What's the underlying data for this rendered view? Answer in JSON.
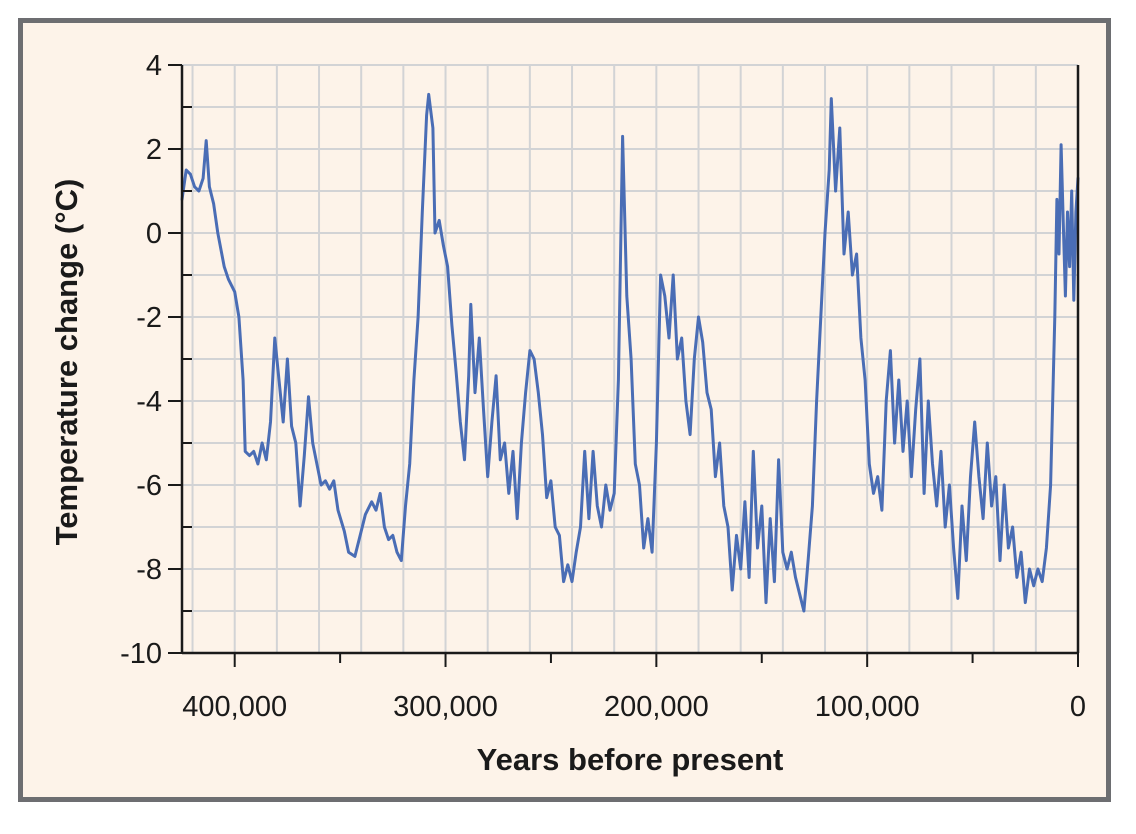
{
  "chart_data": {
    "type": "line",
    "title": "",
    "xlabel": "Years before present",
    "ylabel": "Temperature change (°C)",
    "xlim": [
      425000,
      0
    ],
    "ylim": [
      -10,
      4
    ],
    "x_axis_reversed": true,
    "grid": true,
    "legend": "none",
    "x_ticks": [
      400000,
      300000,
      200000,
      100000,
      0
    ],
    "x_tick_labels": [
      "400,000",
      "300,000",
      "200,000",
      "100,000",
      "0"
    ],
    "x_minor_ticks": [
      350000,
      250000,
      150000,
      50000
    ],
    "y_ticks": [
      4,
      2,
      0,
      -2,
      -4,
      -6,
      -8,
      -10
    ],
    "y_tick_labels": [
      "4",
      "2",
      "0",
      "-2",
      "-4",
      "-6",
      "-8",
      "-10"
    ],
    "series": [
      {
        "color": "#4a6db5",
        "points": [
          [
            425000,
            0.8
          ],
          [
            423000,
            1.5
          ],
          [
            421000,
            1.4
          ],
          [
            419000,
            1.1
          ],
          [
            417000,
            1.0
          ],
          [
            415000,
            1.3
          ],
          [
            413500,
            2.2
          ],
          [
            412000,
            1.1
          ],
          [
            410000,
            0.7
          ],
          [
            408000,
            0.0
          ],
          [
            405000,
            -0.8
          ],
          [
            403000,
            -1.1
          ],
          [
            400000,
            -1.4
          ],
          [
            398000,
            -2.0
          ],
          [
            396000,
            -3.5
          ],
          [
            395000,
            -5.2
          ],
          [
            393000,
            -5.3
          ],
          [
            391000,
            -5.2
          ],
          [
            389000,
            -5.5
          ],
          [
            387000,
            -5.0
          ],
          [
            385000,
            -5.4
          ],
          [
            383000,
            -4.5
          ],
          [
            381000,
            -2.5
          ],
          [
            379000,
            -3.5
          ],
          [
            377000,
            -4.5
          ],
          [
            375000,
            -3.0
          ],
          [
            373000,
            -4.6
          ],
          [
            371000,
            -5.0
          ],
          [
            369000,
            -6.5
          ],
          [
            367000,
            -5.3
          ],
          [
            365000,
            -3.9
          ],
          [
            363000,
            -5.0
          ],
          [
            361000,
            -5.5
          ],
          [
            359000,
            -6.0
          ],
          [
            357000,
            -5.9
          ],
          [
            355000,
            -6.1
          ],
          [
            353000,
            -5.9
          ],
          [
            351000,
            -6.6
          ],
          [
            348000,
            -7.1
          ],
          [
            346000,
            -7.6
          ],
          [
            343000,
            -7.7
          ],
          [
            340000,
            -7.1
          ],
          [
            338000,
            -6.7
          ],
          [
            335000,
            -6.4
          ],
          [
            333000,
            -6.6
          ],
          [
            331000,
            -6.2
          ],
          [
            329000,
            -7.0
          ],
          [
            327000,
            -7.3
          ],
          [
            325000,
            -7.2
          ],
          [
            323000,
            -7.6
          ],
          [
            321000,
            -7.8
          ],
          [
            319000,
            -6.5
          ],
          [
            317000,
            -5.5
          ],
          [
            315000,
            -3.5
          ],
          [
            313000,
            -2.0
          ],
          [
            311000,
            0.5
          ],
          [
            309000,
            2.8
          ],
          [
            308000,
            3.3
          ],
          [
            306000,
            2.5
          ],
          [
            305000,
            0.0
          ],
          [
            303000,
            0.3
          ],
          [
            301000,
            -0.3
          ],
          [
            299000,
            -0.8
          ],
          [
            297000,
            -2.2
          ],
          [
            295000,
            -3.3
          ],
          [
            293000,
            -4.5
          ],
          [
            291000,
            -5.4
          ],
          [
            289000,
            -3.4
          ],
          [
            288000,
            -1.7
          ],
          [
            286000,
            -3.8
          ],
          [
            284000,
            -2.5
          ],
          [
            282000,
            -4.2
          ],
          [
            280000,
            -5.8
          ],
          [
            278000,
            -4.5
          ],
          [
            276000,
            -3.4
          ],
          [
            274000,
            -5.4
          ],
          [
            272000,
            -5.0
          ],
          [
            270000,
            -6.2
          ],
          [
            268000,
            -5.2
          ],
          [
            266000,
            -6.8
          ],
          [
            264000,
            -5.0
          ],
          [
            262000,
            -3.8
          ],
          [
            260000,
            -2.8
          ],
          [
            258000,
            -3.0
          ],
          [
            256000,
            -3.8
          ],
          [
            254000,
            -4.8
          ],
          [
            252000,
            -6.3
          ],
          [
            250000,
            -5.9
          ],
          [
            248000,
            -7.0
          ],
          [
            246000,
            -7.2
          ],
          [
            244000,
            -8.3
          ],
          [
            242000,
            -7.9
          ],
          [
            240000,
            -8.3
          ],
          [
            238000,
            -7.6
          ],
          [
            236000,
            -7.0
          ],
          [
            234000,
            -5.2
          ],
          [
            232000,
            -6.8
          ],
          [
            230000,
            -5.2
          ],
          [
            228000,
            -6.5
          ],
          [
            226000,
            -7.0
          ],
          [
            224000,
            -6.0
          ],
          [
            222000,
            -6.6
          ],
          [
            220000,
            -6.2
          ],
          [
            218000,
            -3.5
          ],
          [
            216000,
            2.3
          ],
          [
            214000,
            -1.5
          ],
          [
            212000,
            -3.0
          ],
          [
            210000,
            -5.5
          ],
          [
            208000,
            -6.0
          ],
          [
            206000,
            -7.5
          ],
          [
            204000,
            -6.8
          ],
          [
            202000,
            -7.6
          ],
          [
            200000,
            -5.0
          ],
          [
            198000,
            -1.0
          ],
          [
            196000,
            -1.5
          ],
          [
            194000,
            -2.5
          ],
          [
            192000,
            -1.0
          ],
          [
            190000,
            -3.0
          ],
          [
            188000,
            -2.5
          ],
          [
            186000,
            -4.0
          ],
          [
            184000,
            -4.8
          ],
          [
            182000,
            -3.0
          ],
          [
            180000,
            -2.0
          ],
          [
            178000,
            -2.6
          ],
          [
            176000,
            -3.8
          ],
          [
            174000,
            -4.2
          ],
          [
            172000,
            -5.8
          ],
          [
            170000,
            -5.0
          ],
          [
            168000,
            -6.5
          ],
          [
            166000,
            -7.0
          ],
          [
            164000,
            -8.5
          ],
          [
            162000,
            -7.2
          ],
          [
            160000,
            -8.0
          ],
          [
            158000,
            -6.4
          ],
          [
            156000,
            -8.2
          ],
          [
            154000,
            -5.2
          ],
          [
            152000,
            -7.5
          ],
          [
            150000,
            -6.5
          ],
          [
            148000,
            -8.8
          ],
          [
            146000,
            -6.8
          ],
          [
            144000,
            -8.3
          ],
          [
            142000,
            -5.4
          ],
          [
            140000,
            -7.6
          ],
          [
            138000,
            -8.0
          ],
          [
            136000,
            -7.6
          ],
          [
            134000,
            -8.2
          ],
          [
            132000,
            -8.6
          ],
          [
            130000,
            -9.0
          ],
          [
            128000,
            -7.8
          ],
          [
            126000,
            -6.5
          ],
          [
            124000,
            -4.0
          ],
          [
            122000,
            -2.0
          ],
          [
            120000,
            0.0
          ],
          [
            118000,
            1.5
          ],
          [
            117000,
            3.2
          ],
          [
            115000,
            1.0
          ],
          [
            113000,
            2.5
          ],
          [
            111000,
            -0.5
          ],
          [
            109000,
            0.5
          ],
          [
            107000,
            -1.0
          ],
          [
            105000,
            -0.5
          ],
          [
            103000,
            -2.5
          ],
          [
            101000,
            -3.5
          ],
          [
            99000,
            -5.5
          ],
          [
            97000,
            -6.2
          ],
          [
            95000,
            -5.8
          ],
          [
            93000,
            -6.6
          ],
          [
            91000,
            -4.0
          ],
          [
            89000,
            -2.8
          ],
          [
            87000,
            -5.0
          ],
          [
            85000,
            -3.5
          ],
          [
            83000,
            -5.2
          ],
          [
            81000,
            -4.0
          ],
          [
            79000,
            -5.8
          ],
          [
            77000,
            -4.2
          ],
          [
            75000,
            -3.0
          ],
          [
            73000,
            -6.2
          ],
          [
            71000,
            -4.0
          ],
          [
            69000,
            -5.5
          ],
          [
            67000,
            -6.5
          ],
          [
            65000,
            -5.2
          ],
          [
            63000,
            -7.0
          ],
          [
            61000,
            -6.0
          ],
          [
            59000,
            -7.5
          ],
          [
            57000,
            -8.7
          ],
          [
            55000,
            -6.5
          ],
          [
            53000,
            -7.8
          ],
          [
            51000,
            -5.8
          ],
          [
            49000,
            -4.5
          ],
          [
            47000,
            -5.8
          ],
          [
            45000,
            -6.8
          ],
          [
            43000,
            -5.0
          ],
          [
            41000,
            -6.5
          ],
          [
            39000,
            -5.8
          ],
          [
            37000,
            -7.8
          ],
          [
            35000,
            -6.0
          ],
          [
            33000,
            -7.5
          ],
          [
            31000,
            -7.0
          ],
          [
            29000,
            -8.2
          ],
          [
            27000,
            -7.6
          ],
          [
            25000,
            -8.8
          ],
          [
            23000,
            -8.0
          ],
          [
            21000,
            -8.4
          ],
          [
            19000,
            -8.0
          ],
          [
            17000,
            -8.3
          ],
          [
            15000,
            -7.5
          ],
          [
            13000,
            -6.0
          ],
          [
            12000,
            -4.0
          ],
          [
            11000,
            -2.0
          ],
          [
            10000,
            0.8
          ],
          [
            9000,
            -0.5
          ],
          [
            8000,
            2.1
          ],
          [
            7000,
            0.3
          ],
          [
            6000,
            -1.5
          ],
          [
            5000,
            0.5
          ],
          [
            4000,
            -0.8
          ],
          [
            3000,
            1.0
          ],
          [
            2000,
            -1.6
          ],
          [
            1000,
            0.5
          ],
          [
            0,
            1.3
          ]
        ]
      }
    ]
  }
}
